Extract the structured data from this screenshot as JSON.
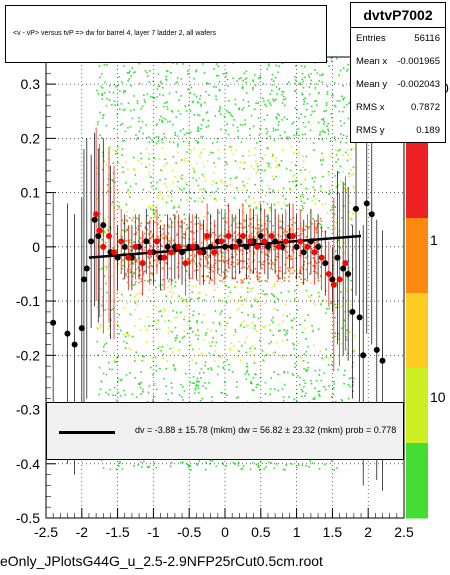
{
  "title": "<v - vP>       versus  tvP =>  dw for barrel 4, layer 7 ladder 2, all wafers",
  "footer": "eOnly_JPlotsG44G_u_2.5-2.9NFP25rCut0.5cm.root",
  "stats": {
    "name": "dvtvP7002",
    "rows": [
      {
        "label": "Entries",
        "value": "56116"
      },
      {
        "label": "Mean x",
        "value": "-0.001965"
      },
      {
        "label": "Mean y",
        "value": "-0.002043"
      },
      {
        "label": "RMS x",
        "value": "0.7872"
      },
      {
        "label": "RMS y",
        "value": "0.189"
      }
    ]
  },
  "fit": {
    "text": "dv =   -3.88 ± 15.78 (mkm) dw =   56.82 ± 23.32 (mkm) prob = 0.778"
  },
  "colors": {
    "scatter_outer": "#33dd33",
    "scatter_mid": "#ddee22",
    "scatter_core": "#ee7722",
    "profile_red": "#ff0000",
    "profile_black": "#000000",
    "palette": [
      "#ee2222",
      "#ff8811",
      "#ffcc22",
      "#ccee22",
      "#44dd33"
    ]
  },
  "chart_data": {
    "type": "scatter",
    "title": "<v - vP>       versus  tvP =>  dw for barrel 4, layer 7 ladder 2, all wafers",
    "xlabel": "",
    "ylabel": "",
    "xlim": [
      -2.5,
      2.5
    ],
    "ylim": [
      -0.5,
      0.35
    ],
    "x_ticks": [
      "-2.5",
      "-2",
      "-1.5",
      "-1",
      "-0.5",
      "0",
      "0.5",
      "1",
      "1.5",
      "2",
      "2.5"
    ],
    "y_ticks": [
      "-0.5",
      "-0.4",
      "-0.3",
      "-0.2",
      "-0.1",
      "0",
      "0.1",
      "0.2",
      "0.3"
    ],
    "z_ticks": [
      "1",
      "10"
    ],
    "z_top_label": "0",
    "grid": true,
    "fit_line": {
      "x": [
        -1.9,
        1.9
      ],
      "y": [
        -0.02,
        0.02
      ]
    },
    "series": [
      {
        "name": "",
        "color": "black",
        "x": [
          -2.4,
          -2.2,
          -2.1,
          -2.0,
          -1.97,
          -1.93,
          -1.87,
          -1.82,
          -1.77,
          -1.7,
          -1.6,
          -1.5,
          -1.4,
          -1.3,
          -1.2,
          -1.1,
          -1.0,
          -0.9,
          -0.8,
          -0.7,
          -0.6,
          -0.5,
          -0.4,
          -0.3,
          -0.2,
          -0.1,
          0.0,
          0.1,
          0.2,
          0.3,
          0.4,
          0.5,
          0.6,
          0.7,
          0.8,
          0.9,
          1.0,
          1.1,
          1.2,
          1.3,
          1.4,
          1.5,
          1.57,
          1.65,
          1.72,
          1.78,
          1.83,
          1.88,
          1.93,
          1.98,
          2.05,
          2.12,
          2.2
        ],
        "y": [
          -0.14,
          -0.16,
          -0.18,
          -0.15,
          -0.06,
          -0.04,
          0.01,
          0.05,
          0.02,
          0.04,
          -0.01,
          -0.02,
          0.0,
          -0.02,
          0.0,
          0.01,
          -0.01,
          -0.02,
          0.0,
          0.0,
          -0.01,
          0.0,
          0.0,
          -0.01,
          0.0,
          0.01,
          0.0,
          0.0,
          0.01,
          0.0,
          0.01,
          0.02,
          0.0,
          0.01,
          0.0,
          0.02,
          0.0,
          -0.01,
          0.01,
          0.0,
          -0.03,
          -0.06,
          -0.02,
          -0.04,
          -0.05,
          -0.12,
          0.07,
          -0.13,
          -0.2,
          0.08,
          0.06,
          -0.19,
          -0.21
        ]
      },
      {
        "name": "",
        "color": "red",
        "x": [
          -1.8,
          -1.75,
          -1.7,
          -1.62,
          -1.55,
          -1.45,
          -1.35,
          -1.25,
          -1.15,
          -1.05,
          -0.95,
          -0.85,
          -0.75,
          -0.65,
          -0.55,
          -0.45,
          -0.35,
          -0.25,
          -0.15,
          -0.05,
          0.05,
          0.15,
          0.25,
          0.35,
          0.45,
          0.55,
          0.65,
          0.75,
          0.85,
          0.95,
          1.05,
          1.15,
          1.25,
          1.35,
          1.45,
          1.52,
          1.6,
          1.68
        ],
        "y": [
          0.06,
          0.03,
          0.0,
          0.02,
          -0.01,
          0.01,
          -0.02,
          0.0,
          -0.03,
          -0.01,
          0.01,
          -0.02,
          -0.01,
          0.0,
          -0.03,
          0.0,
          -0.01,
          0.02,
          -0.01,
          0.01,
          0.02,
          0.0,
          0.02,
          0.01,
          0.0,
          0.01,
          0.02,
          0.0,
          0.01,
          0.02,
          0.01,
          0.0,
          -0.01,
          -0.02,
          -0.05,
          -0.07,
          -0.06,
          -0.03
        ]
      }
    ]
  }
}
